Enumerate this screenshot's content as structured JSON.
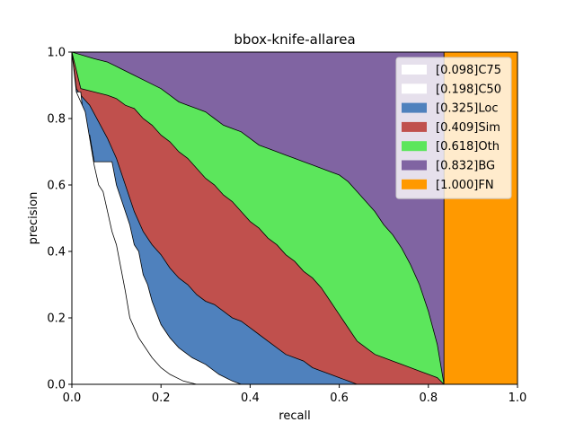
{
  "chart_data": {
    "type": "area",
    "title": "bbox-knife-allarea",
    "xlabel": "recall",
    "ylabel": "precision",
    "xlim": [
      0,
      1
    ],
    "ylim": [
      0,
      1
    ],
    "x_ticks": [
      "0.0",
      "0.2",
      "0.4",
      "0.6",
      "0.8",
      "1.0"
    ],
    "y_ticks": [
      "0.0",
      "0.2",
      "0.4",
      "0.6",
      "0.8",
      "1.0"
    ],
    "grid": false,
    "legend_position": "top-right",
    "series": [
      {
        "name": "[0.098]C75",
        "color": "#ffffff",
        "points": [
          [
            0.0,
            1.0
          ],
          [
            0.01,
            0.88
          ],
          [
            0.03,
            0.82
          ],
          [
            0.04,
            0.74
          ],
          [
            0.05,
            0.66
          ],
          [
            0.06,
            0.6
          ],
          [
            0.07,
            0.58
          ],
          [
            0.08,
            0.52
          ],
          [
            0.09,
            0.46
          ],
          [
            0.1,
            0.42
          ],
          [
            0.11,
            0.35
          ],
          [
            0.12,
            0.28
          ],
          [
            0.13,
            0.2
          ],
          [
            0.15,
            0.14
          ],
          [
            0.18,
            0.08
          ],
          [
            0.2,
            0.05
          ],
          [
            0.22,
            0.03
          ],
          [
            0.25,
            0.01
          ],
          [
            0.28,
            0.0
          ]
        ]
      },
      {
        "name": "[0.198]C50",
        "color": "#ffffff",
        "points": [
          [
            0.0,
            1.0
          ],
          [
            0.01,
            0.88
          ],
          [
            0.02,
            0.88
          ],
          [
            0.03,
            0.75
          ],
          [
            0.04,
            0.75
          ],
          [
            0.05,
            0.67
          ],
          [
            0.09,
            0.67
          ],
          [
            0.1,
            0.6
          ],
          [
            0.11,
            0.56
          ],
          [
            0.13,
            0.48
          ],
          [
            0.14,
            0.42
          ],
          [
            0.15,
            0.4
          ],
          [
            0.16,
            0.33
          ],
          [
            0.17,
            0.3
          ],
          [
            0.18,
            0.25
          ],
          [
            0.2,
            0.18
          ],
          [
            0.22,
            0.14
          ],
          [
            0.24,
            0.11
          ],
          [
            0.27,
            0.08
          ],
          [
            0.3,
            0.06
          ],
          [
            0.33,
            0.03
          ],
          [
            0.36,
            0.01
          ],
          [
            0.38,
            0.0
          ]
        ]
      },
      {
        "name": "[0.325]Loc",
        "color": "#4f81bd",
        "points": [
          [
            0.0,
            1.0
          ],
          [
            0.01,
            0.89
          ],
          [
            0.02,
            0.87
          ],
          [
            0.04,
            0.84
          ],
          [
            0.06,
            0.79
          ],
          [
            0.08,
            0.74
          ],
          [
            0.1,
            0.68
          ],
          [
            0.12,
            0.6
          ],
          [
            0.14,
            0.52
          ],
          [
            0.16,
            0.46
          ],
          [
            0.18,
            0.42
          ],
          [
            0.2,
            0.39
          ],
          [
            0.22,
            0.35
          ],
          [
            0.24,
            0.32
          ],
          [
            0.26,
            0.3
          ],
          [
            0.28,
            0.27
          ],
          [
            0.3,
            0.25
          ],
          [
            0.32,
            0.24
          ],
          [
            0.34,
            0.22
          ],
          [
            0.36,
            0.2
          ],
          [
            0.38,
            0.19
          ],
          [
            0.4,
            0.17
          ],
          [
            0.42,
            0.15
          ],
          [
            0.44,
            0.13
          ],
          [
            0.46,
            0.11
          ],
          [
            0.48,
            0.09
          ],
          [
            0.5,
            0.08
          ],
          [
            0.52,
            0.07
          ],
          [
            0.54,
            0.05
          ],
          [
            0.56,
            0.04
          ],
          [
            0.58,
            0.03
          ],
          [
            0.6,
            0.02
          ],
          [
            0.62,
            0.01
          ],
          [
            0.64,
            0.0
          ]
        ]
      },
      {
        "name": "[0.409]Sim",
        "color": "#c0504d",
        "points": [
          [
            0.0,
            1.0
          ],
          [
            0.02,
            0.89
          ],
          [
            0.05,
            0.88
          ],
          [
            0.08,
            0.87
          ],
          [
            0.1,
            0.86
          ],
          [
            0.12,
            0.84
          ],
          [
            0.14,
            0.83
          ],
          [
            0.16,
            0.8
          ],
          [
            0.18,
            0.78
          ],
          [
            0.2,
            0.75
          ],
          [
            0.22,
            0.73
          ],
          [
            0.24,
            0.7
          ],
          [
            0.26,
            0.68
          ],
          [
            0.28,
            0.65
          ],
          [
            0.3,
            0.62
          ],
          [
            0.32,
            0.6
          ],
          [
            0.34,
            0.57
          ],
          [
            0.36,
            0.55
          ],
          [
            0.38,
            0.52
          ],
          [
            0.4,
            0.49
          ],
          [
            0.42,
            0.47
          ],
          [
            0.44,
            0.44
          ],
          [
            0.46,
            0.42
          ],
          [
            0.48,
            0.39
          ],
          [
            0.5,
            0.37
          ],
          [
            0.52,
            0.34
          ],
          [
            0.54,
            0.32
          ],
          [
            0.56,
            0.29
          ],
          [
            0.58,
            0.25
          ],
          [
            0.6,
            0.21
          ],
          [
            0.62,
            0.17
          ],
          [
            0.64,
            0.13
          ],
          [
            0.66,
            0.11
          ],
          [
            0.68,
            0.09
          ],
          [
            0.7,
            0.08
          ],
          [
            0.72,
            0.07
          ],
          [
            0.74,
            0.06
          ],
          [
            0.76,
            0.05
          ],
          [
            0.78,
            0.04
          ],
          [
            0.8,
            0.03
          ],
          [
            0.82,
            0.02
          ],
          [
            0.835,
            0.0
          ]
        ]
      },
      {
        "name": "[0.618]Oth",
        "color": "#5ce65c",
        "points": [
          [
            0.0,
            1.0
          ],
          [
            0.05,
            0.98
          ],
          [
            0.08,
            0.97
          ],
          [
            0.11,
            0.95
          ],
          [
            0.14,
            0.93
          ],
          [
            0.17,
            0.91
          ],
          [
            0.2,
            0.89
          ],
          [
            0.22,
            0.87
          ],
          [
            0.24,
            0.85
          ],
          [
            0.26,
            0.84
          ],
          [
            0.28,
            0.83
          ],
          [
            0.3,
            0.82
          ],
          [
            0.32,
            0.8
          ],
          [
            0.34,
            0.78
          ],
          [
            0.36,
            0.77
          ],
          [
            0.38,
            0.76
          ],
          [
            0.4,
            0.74
          ],
          [
            0.42,
            0.72
          ],
          [
            0.44,
            0.71
          ],
          [
            0.46,
            0.7
          ],
          [
            0.48,
            0.69
          ],
          [
            0.5,
            0.68
          ],
          [
            0.52,
            0.67
          ],
          [
            0.54,
            0.66
          ],
          [
            0.56,
            0.65
          ],
          [
            0.58,
            0.64
          ],
          [
            0.6,
            0.63
          ],
          [
            0.62,
            0.61
          ],
          [
            0.64,
            0.58
          ],
          [
            0.66,
            0.55
          ],
          [
            0.68,
            0.52
          ],
          [
            0.7,
            0.48
          ],
          [
            0.72,
            0.45
          ],
          [
            0.74,
            0.41
          ],
          [
            0.76,
            0.36
          ],
          [
            0.78,
            0.3
          ],
          [
            0.8,
            0.22
          ],
          [
            0.82,
            0.12
          ],
          [
            0.835,
            0.0
          ]
        ]
      },
      {
        "name": "[0.832]BG",
        "color": "#8064a2",
        "points": [
          [
            0.0,
            1.0
          ],
          [
            0.835,
            1.0
          ],
          [
            0.835,
            0.0
          ]
        ]
      },
      {
        "name": "[1.000]FN",
        "color": "#ff9900",
        "points": [
          [
            0.835,
            1.0
          ],
          [
            1.0,
            1.0
          ],
          [
            1.0,
            0.0
          ],
          [
            0.835,
            0.0
          ]
        ]
      }
    ]
  }
}
